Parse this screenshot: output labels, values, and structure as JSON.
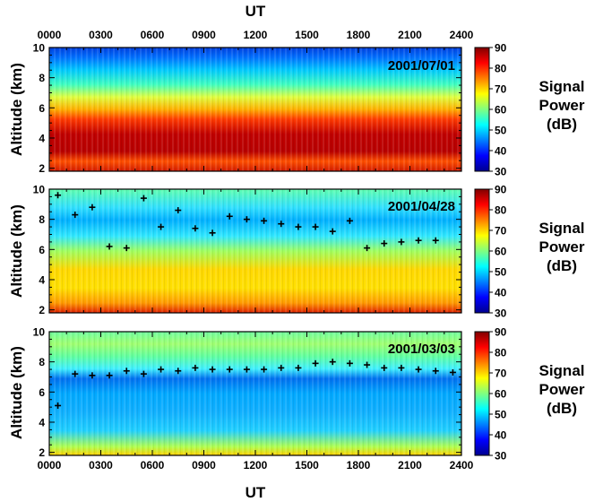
{
  "chart_data": {
    "type": "heatmap",
    "x_axis": {
      "label": "UT",
      "ticks": [
        "0000",
        "0300",
        "0600",
        "0900",
        "1200",
        "1500",
        "1800",
        "2100",
        "2400"
      ],
      "range_hours": [
        0,
        24
      ]
    },
    "y_axis": {
      "label": "Altitude (km)",
      "ticks": [
        "2",
        "4",
        "6",
        "8",
        "10"
      ],
      "range_km": [
        1.8,
        10
      ]
    },
    "colorbar": {
      "title_lines": [
        "Signal",
        "Power",
        "(dB)"
      ],
      "ticks": [
        "30",
        "40",
        "50",
        "60",
        "70",
        "80",
        "90"
      ],
      "range_db": [
        30,
        90
      ],
      "colors": [
        "#00008f",
        "#0000ff",
        "#0080ff",
        "#00ffff",
        "#80ff80",
        "#ffff00",
        "#ff8000",
        "#ff0000",
        "#800000"
      ]
    },
    "panels": [
      {
        "date": "2001/07/01",
        "markers": []
      },
      {
        "date": "2001/04/28",
        "markers": [
          {
            "hour": 0.5,
            "alt_km": 9.6
          },
          {
            "hour": 1.5,
            "alt_km": 8.3
          },
          {
            "hour": 2.5,
            "alt_km": 8.8
          },
          {
            "hour": 3.5,
            "alt_km": 6.2
          },
          {
            "hour": 4.5,
            "alt_km": 6.1
          },
          {
            "hour": 5.5,
            "alt_km": 9.4
          },
          {
            "hour": 6.5,
            "alt_km": 7.5
          },
          {
            "hour": 7.5,
            "alt_km": 8.6
          },
          {
            "hour": 8.5,
            "alt_km": 7.4
          },
          {
            "hour": 9.5,
            "alt_km": 7.1
          },
          {
            "hour": 10.5,
            "alt_km": 8.2
          },
          {
            "hour": 11.5,
            "alt_km": 8.0
          },
          {
            "hour": 12.5,
            "alt_km": 7.9
          },
          {
            "hour": 13.5,
            "alt_km": 7.7
          },
          {
            "hour": 14.5,
            "alt_km": 7.5
          },
          {
            "hour": 15.5,
            "alt_km": 7.5
          },
          {
            "hour": 16.5,
            "alt_km": 7.2
          },
          {
            "hour": 17.5,
            "alt_km": 7.9
          },
          {
            "hour": 18.5,
            "alt_km": 6.1
          },
          {
            "hour": 19.5,
            "alt_km": 6.4
          },
          {
            "hour": 20.5,
            "alt_km": 6.5
          },
          {
            "hour": 21.5,
            "alt_km": 6.6
          },
          {
            "hour": 22.5,
            "alt_km": 6.6
          }
        ]
      },
      {
        "date": "2001/03/03",
        "markers": [
          {
            "hour": 0.5,
            "alt_km": 5.1
          },
          {
            "hour": 1.5,
            "alt_km": 7.2
          },
          {
            "hour": 2.5,
            "alt_km": 7.1
          },
          {
            "hour": 3.5,
            "alt_km": 7.1
          },
          {
            "hour": 4.5,
            "alt_km": 7.4
          },
          {
            "hour": 5.5,
            "alt_km": 7.2
          },
          {
            "hour": 6.5,
            "alt_km": 7.5
          },
          {
            "hour": 7.5,
            "alt_km": 7.4
          },
          {
            "hour": 8.5,
            "alt_km": 7.6
          },
          {
            "hour": 9.5,
            "alt_km": 7.5
          },
          {
            "hour": 10.5,
            "alt_km": 7.5
          },
          {
            "hour": 11.5,
            "alt_km": 7.5
          },
          {
            "hour": 12.5,
            "alt_km": 7.5
          },
          {
            "hour": 13.5,
            "alt_km": 7.6
          },
          {
            "hour": 14.5,
            "alt_km": 7.6
          },
          {
            "hour": 15.5,
            "alt_km": 7.9
          },
          {
            "hour": 16.5,
            "alt_km": 8.0
          },
          {
            "hour": 17.5,
            "alt_km": 7.9
          },
          {
            "hour": 18.5,
            "alt_km": 7.8
          },
          {
            "hour": 19.5,
            "alt_km": 7.6
          },
          {
            "hour": 20.5,
            "alt_km": 7.6
          },
          {
            "hour": 21.5,
            "alt_km": 7.5
          },
          {
            "hour": 22.5,
            "alt_km": 7.4
          },
          {
            "hour": 23.5,
            "alt_km": 7.3
          }
        ]
      }
    ]
  }
}
